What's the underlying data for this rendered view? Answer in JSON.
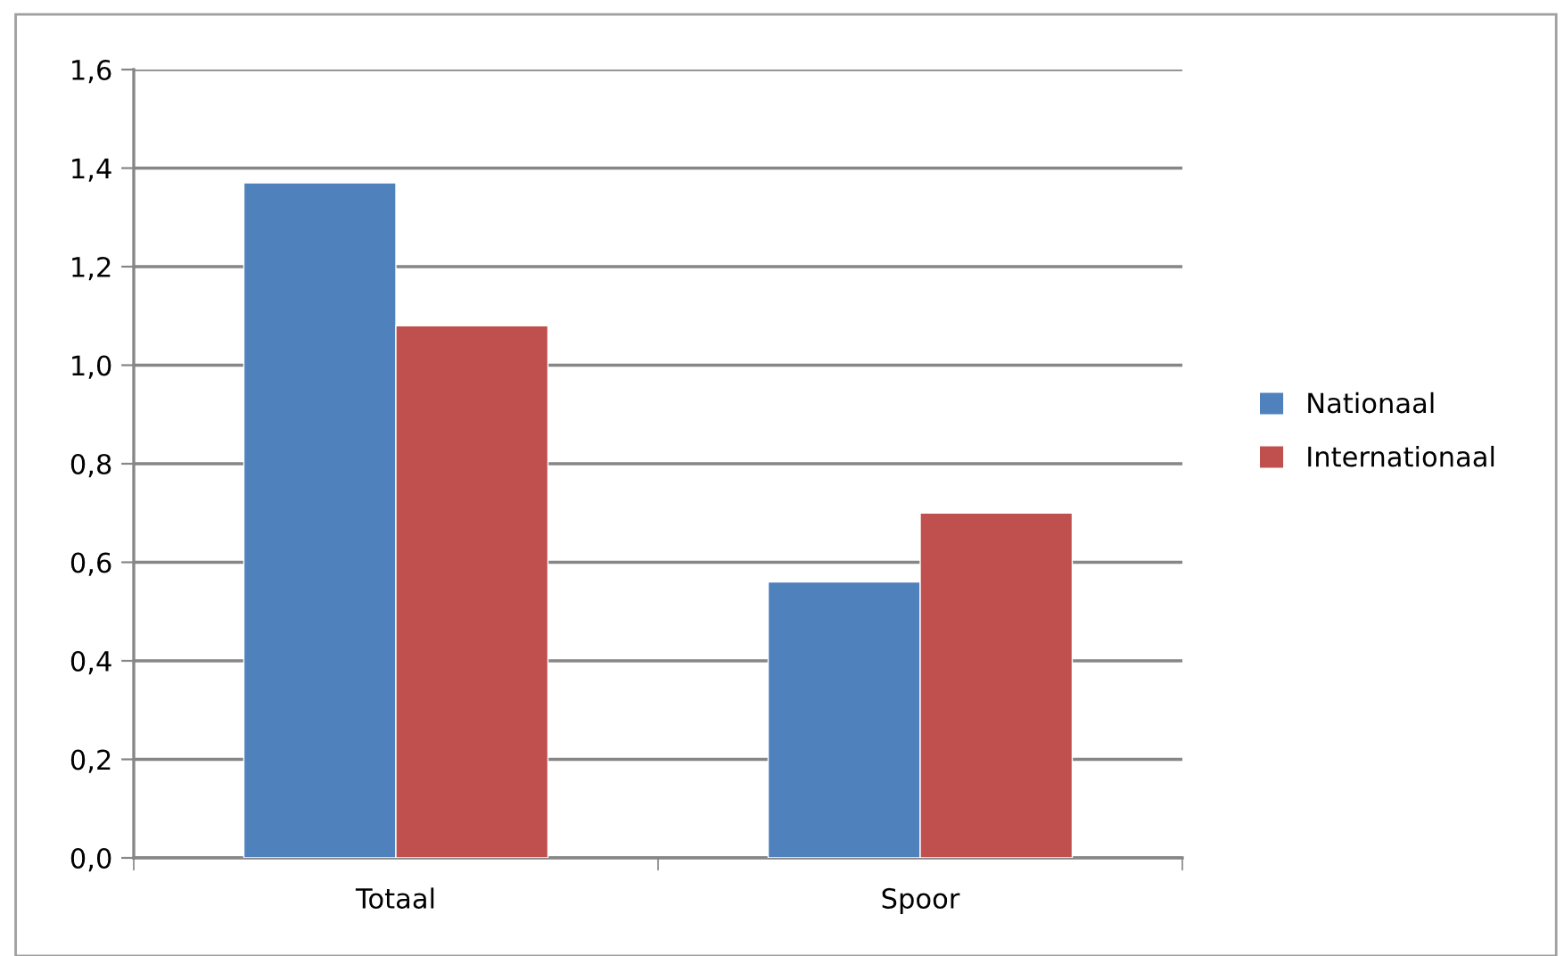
{
  "chart_data": {
    "type": "bar",
    "categories": [
      "Totaal",
      "Spoor"
    ],
    "series": [
      {
        "name": "Nationaal",
        "color": "#4f81bd",
        "values": [
          1.37,
          0.56
        ]
      },
      {
        "name": "Internationaal",
        "color": "#c0504d",
        "values": [
          1.08,
          0.7
        ]
      }
    ],
    "ylim": [
      0,
      1.6
    ],
    "yticks": [
      {
        "value": 0,
        "label": "0,0"
      },
      {
        "value": 0.2,
        "label": "0,2"
      },
      {
        "value": 0.4,
        "label": "0,4"
      },
      {
        "value": 0.6,
        "label": "0,6"
      },
      {
        "value": 0.8,
        "label": "0,8"
      },
      {
        "value": 1.0,
        "label": "1,0"
      },
      {
        "value": 1.2,
        "label": "1,2"
      },
      {
        "value": 1.4,
        "label": "1,4"
      },
      {
        "value": 1.6,
        "label": "1,6"
      }
    ],
    "grid": "y",
    "legend": "right"
  }
}
